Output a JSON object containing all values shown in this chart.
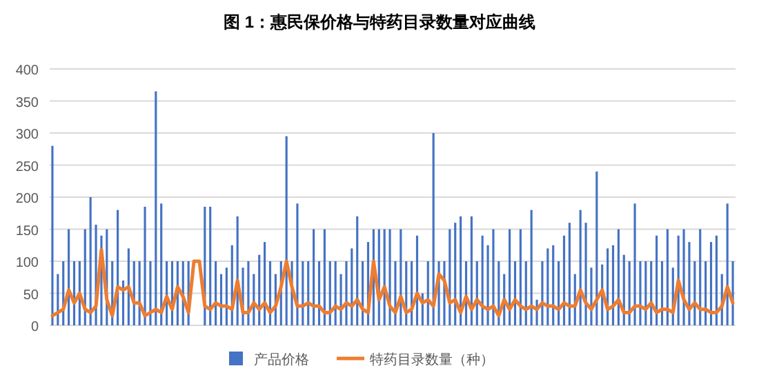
{
  "chart_data": {
    "type": "bar",
    "title": "图 1：惠民保价格与特药目录数量对应曲线",
    "categories": [
      null,
      null,
      null,
      null,
      null,
      null,
      null,
      null,
      null,
      null,
      null,
      null,
      null,
      null,
      null,
      null,
      null,
      null,
      null,
      null,
      null,
      null,
      null,
      null,
      null,
      null,
      null,
      null,
      null,
      null,
      null,
      null,
      null,
      null,
      null,
      null,
      null,
      null,
      null,
      null,
      null,
      null,
      null,
      null,
      null,
      null,
      null,
      null,
      null,
      null,
      null,
      null,
      null,
      null,
      null,
      null,
      null,
      null,
      null,
      null,
      null,
      null,
      null,
      null,
      null,
      null,
      null,
      null,
      null,
      null,
      null,
      null,
      null,
      null,
      null,
      null,
      null,
      null,
      null,
      null,
      null,
      null,
      null,
      null,
      null,
      null,
      null,
      null,
      null,
      null,
      null,
      null,
      null,
      null,
      null,
      null,
      null,
      null,
      null,
      null,
      null,
      null,
      null,
      null,
      null,
      null,
      null,
      null,
      null,
      null,
      null,
      null,
      null,
      null,
      null,
      null,
      null,
      null,
      null,
      null,
      null,
      null,
      null,
      null,
      null,
      null
    ],
    "series": [
      {
        "name": "产品价格",
        "color": "#4472c4",
        "values": [
          280,
          80,
          100,
          150,
          100,
          100,
          150,
          200,
          157,
          140,
          150,
          100,
          180,
          70,
          120,
          100,
          100,
          185,
          100,
          365,
          190,
          100,
          100,
          100,
          100,
          100,
          null,
          null,
          185,
          185,
          100,
          80,
          90,
          125,
          170,
          90,
          100,
          80,
          110,
          130,
          100,
          80,
          100,
          295,
          100,
          190,
          100,
          100,
          150,
          100,
          150,
          100,
          100,
          80,
          100,
          120,
          170,
          100,
          130,
          150,
          150,
          150,
          150,
          100,
          150,
          100,
          100,
          140,
          50,
          100,
          300,
          100,
          100,
          150,
          160,
          170,
          100,
          170,
          100,
          140,
          125,
          150,
          100,
          80,
          150,
          100,
          150,
          100,
          180,
          40,
          100,
          120,
          125,
          100,
          140,
          160,
          80,
          180,
          160,
          90,
          240,
          95,
          120,
          125,
          150,
          110,
          100,
          190,
          100,
          100,
          100,
          140,
          100,
          150,
          90,
          140,
          150,
          130,
          100,
          150,
          100,
          130,
          140,
          80,
          190,
          100
        ]
      },
      {
        "name": "特药目录数量（种）",
        "type": "line",
        "color": "#ed7d31",
        "values": [
          15,
          20,
          25,
          55,
          35,
          50,
          25,
          20,
          30,
          118,
          40,
          15,
          60,
          55,
          60,
          35,
          35,
          15,
          20,
          25,
          20,
          45,
          25,
          60,
          45,
          20,
          100,
          100,
          30,
          25,
          35,
          30,
          30,
          25,
          70,
          20,
          20,
          35,
          25,
          35,
          20,
          30,
          60,
          100,
          60,
          30,
          30,
          35,
          30,
          30,
          20,
          20,
          30,
          25,
          35,
          30,
          40,
          25,
          20,
          100,
          40,
          60,
          30,
          20,
          45,
          20,
          25,
          50,
          35,
          40,
          30,
          80,
          70,
          35,
          40,
          20,
          45,
          25,
          40,
          30,
          25,
          30,
          15,
          40,
          25,
          40,
          30,
          25,
          30,
          25,
          35,
          30,
          30,
          25,
          35,
          30,
          30,
          55,
          35,
          25,
          40,
          55,
          25,
          30,
          40,
          20,
          20,
          30,
          30,
          25,
          35,
          20,
          25,
          25,
          20,
          70,
          40,
          25,
          35,
          25,
          25,
          20,
          20,
          30,
          60,
          35
        ]
      }
    ],
    "ylim": [
      0,
      400
    ],
    "yticks": [
      0,
      50,
      100,
      150,
      200,
      250,
      300,
      350,
      400
    ],
    "grid": "y",
    "legend": "bottom"
  }
}
